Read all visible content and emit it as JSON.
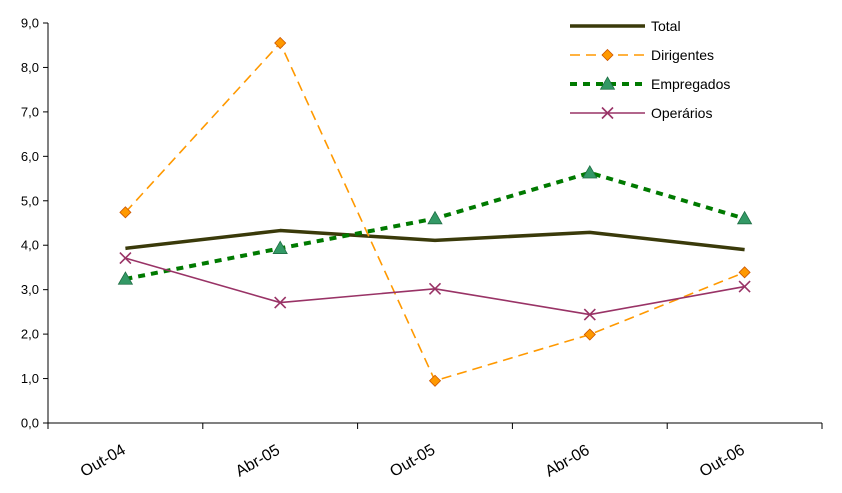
{
  "chart_data": {
    "type": "line",
    "title": "",
    "xlabel": "",
    "ylabel": "",
    "categories": [
      "Out-04",
      "Abr-05",
      "Out-05",
      "Abr-06",
      "Out-06"
    ],
    "ylim": [
      0,
      9
    ],
    "yticks": [
      "0,0",
      "1,0",
      "2,0",
      "3,0",
      "4,0",
      "5,0",
      "6,0",
      "7,0",
      "8,0",
      "9,0"
    ],
    "grid": false,
    "legend_position": "top-right",
    "series": [
      {
        "name": "Total",
        "values": [
          3.93,
          4.33,
          4.11,
          4.29,
          3.9
        ],
        "color": "#3a3a0a",
        "dash": "solid",
        "marker": "none"
      },
      {
        "name": "Dirigentes",
        "values": [
          4.74,
          8.55,
          0.95,
          1.99,
          3.39
        ],
        "color": "#ff9900",
        "dash": "long-dash",
        "marker": "diamond"
      },
      {
        "name": "Empregados",
        "values": [
          3.24,
          3.93,
          4.6,
          5.63,
          4.6
        ],
        "color": "#007a00",
        "dash": "dash",
        "marker": "triangle"
      },
      {
        "name": "Operários",
        "values": [
          3.71,
          2.71,
          3.02,
          2.44,
          3.07
        ],
        "color": "#993366",
        "dash": "solid",
        "marker": "x"
      }
    ]
  }
}
